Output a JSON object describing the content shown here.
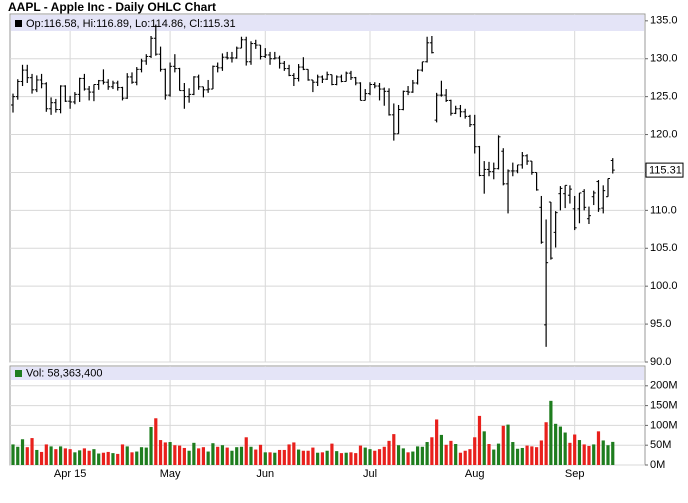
{
  "chart_data": [
    {
      "type": "ohlc",
      "title": "AAPL - Apple Inc - Daily OHLC Chart",
      "legend_text": "Op:116.58, Hi:116.89, Lo:114.86, Cl:115.31",
      "color": "#000000",
      "grid": true,
      "ylim": [
        90,
        135.9
      ],
      "yticks": [
        {
          "value": 90,
          "label": "90.0"
        },
        {
          "value": 95,
          "label": "95.0"
        },
        {
          "value": 100,
          "label": "100.0"
        },
        {
          "value": 105,
          "label": "105.0"
        },
        {
          "value": 110,
          "label": "110.0"
        },
        {
          "value": 115,
          "label": "115.0"
        },
        {
          "value": 120,
          "label": "120.0"
        },
        {
          "value": 125,
          "label": "125.0"
        },
        {
          "value": 130,
          "label": "130.0"
        },
        {
          "value": 135,
          "label": "135.0"
        }
      ],
      "values": [
        [
          123.9,
          125.4,
          122.9,
          125.0
        ],
        [
          125.0,
          127.3,
          124.6,
          127.0
        ],
        [
          127.0,
          129.2,
          126.4,
          128.5
        ],
        [
          128.5,
          129.2,
          126.8,
          127.5
        ],
        [
          127.5,
          128.0,
          125.4,
          125.9
        ],
        [
          125.9,
          127.8,
          125.6,
          127.2
        ],
        [
          127.2,
          128.0,
          126.1,
          126.7
        ],
        [
          126.7,
          126.9,
          123.0,
          123.4
        ],
        [
          123.4,
          124.9,
          122.6,
          124.2
        ],
        [
          124.2,
          124.7,
          122.9,
          123.3
        ],
        [
          123.3,
          126.5,
          122.8,
          126.4
        ],
        [
          126.4,
          126.5,
          124.3,
          124.4
        ],
        [
          124.4,
          125.1,
          123.4,
          124.3
        ],
        [
          124.3,
          125.6,
          124.0,
          125.3
        ],
        [
          125.3,
          127.5,
          124.3,
          127.4
        ],
        [
          127.4,
          128.0,
          125.8,
          126.0
        ],
        [
          126.0,
          126.4,
          124.5,
          125.6
        ],
        [
          125.6,
          126.6,
          124.4,
          126.6
        ],
        [
          126.6,
          127.2,
          125.9,
          127.1
        ],
        [
          127.1,
          128.6,
          126.6,
          126.9
        ],
        [
          126.9,
          127.3,
          125.9,
          126.3
        ],
        [
          126.3,
          127.1,
          126.0,
          126.8
        ],
        [
          126.8,
          127.1,
          125.8,
          126.2
        ],
        [
          126.2,
          126.3,
          124.5,
          124.8
        ],
        [
          124.8,
          128.1,
          124.7,
          127.6
        ],
        [
          127.6,
          128.2,
          126.7,
          126.9
        ],
        [
          126.9,
          128.9,
          126.5,
          128.6
        ],
        [
          128.6,
          130.0,
          128.2,
          129.7
        ],
        [
          129.7,
          130.6,
          129.2,
          130.3
        ],
        [
          130.3,
          133.0,
          130.1,
          132.7
        ],
        [
          132.7,
          134.5,
          130.4,
          130.6
        ],
        [
          130.6,
          131.6,
          128.3,
          128.6
        ],
        [
          128.6,
          128.7,
          124.6,
          125.2
        ],
        [
          125.2,
          129.5,
          125.0,
          129.0
        ],
        [
          129.0,
          130.6,
          128.2,
          128.7
        ],
        [
          128.7,
          128.8,
          125.8,
          125.8
        ],
        [
          125.8,
          126.8,
          123.4,
          125.0
        ],
        [
          125.0,
          126.1,
          124.2,
          125.3
        ],
        [
          125.3,
          127.7,
          125.2,
          127.6
        ],
        [
          127.6,
          127.9,
          125.9,
          126.3
        ],
        [
          126.3,
          126.3,
          124.9,
          125.9
        ],
        [
          125.9,
          127.2,
          125.5,
          126.0
        ],
        [
          126.0,
          129.1,
          126.0,
          129.0
        ],
        [
          129.0,
          129.5,
          128.2,
          128.8
        ],
        [
          128.8,
          130.7,
          128.4,
          130.2
        ],
        [
          130.2,
          130.9,
          129.9,
          130.1
        ],
        [
          130.1,
          130.9,
          129.5,
          130.1
        ],
        [
          130.1,
          131.6,
          130.0,
          131.4
        ],
        [
          131.4,
          132.9,
          131.4,
          132.5
        ],
        [
          132.5,
          132.9,
          129.1,
          129.6
        ],
        [
          129.6,
          132.3,
          129.2,
          132.0
        ],
        [
          132.0,
          132.5,
          131.3,
          131.8
        ],
        [
          131.8,
          131.8,
          129.9,
          130.3
        ],
        [
          130.3,
          131.4,
          130.1,
          130.5
        ],
        [
          130.5,
          130.9,
          129.2,
          130.0
        ],
        [
          130.0,
          130.9,
          129.9,
          130.1
        ],
        [
          130.1,
          130.4,
          128.7,
          129.4
        ],
        [
          129.4,
          129.7,
          128.4,
          128.7
        ],
        [
          128.7,
          129.2,
          127.7,
          127.8
        ],
        [
          127.8,
          128.1,
          126.4,
          127.4
        ],
        [
          127.4,
          129.3,
          127.0,
          128.9
        ],
        [
          128.9,
          130.2,
          128.5,
          128.6
        ],
        [
          128.6,
          128.6,
          127.1,
          127.2
        ],
        [
          127.2,
          127.2,
          125.6,
          126.9
        ],
        [
          126.9,
          127.9,
          126.4,
          127.6
        ],
        [
          127.6,
          127.8,
          126.8,
          127.3
        ],
        [
          127.3,
          128.3,
          127.2,
          127.9
        ],
        [
          127.9,
          127.9,
          126.5,
          126.6
        ],
        [
          126.6,
          127.8,
          126.5,
          127.6
        ],
        [
          127.6,
          127.9,
          126.9,
          127.0
        ],
        [
          127.0,
          128.3,
          127.0,
          128.1
        ],
        [
          128.1,
          128.4,
          127.2,
          127.5
        ],
        [
          127.5,
          127.6,
          126.5,
          126.8
        ],
        [
          126.8,
          126.9,
          124.5,
          124.5
        ],
        [
          124.5,
          126.0,
          124.5,
          125.4
        ],
        [
          125.4,
          126.9,
          125.2,
          126.6
        ],
        [
          126.6,
          126.9,
          126.1,
          126.4
        ],
        [
          126.4,
          126.8,
          124.5,
          126.0
        ],
        [
          126.0,
          126.2,
          123.8,
          125.7
        ],
        [
          125.7,
          126.1,
          122.5,
          122.6
        ],
        [
          122.6,
          124.1,
          119.2,
          120.1
        ],
        [
          120.1,
          123.9,
          120.1,
          123.3
        ],
        [
          123.3,
          125.8,
          123.2,
          125.7
        ],
        [
          125.7,
          126.4,
          125.2,
          125.6
        ],
        [
          125.6,
          127.2,
          125.5,
          126.8
        ],
        [
          126.8,
          128.6,
          126.6,
          128.5
        ],
        [
          128.5,
          129.6,
          128.3,
          129.6
        ],
        [
          129.6,
          132.9,
          129.5,
          132.1
        ],
        [
          132.1,
          133.0,
          130.7,
          130.8
        ],
        [
          121.9,
          125.5,
          121.6,
          125.2
        ],
        [
          125.2,
          127.1,
          125.0,
          125.2
        ],
        [
          125.2,
          126.0,
          124.3,
          124.5
        ],
        [
          124.5,
          124.6,
          122.5,
          122.8
        ],
        [
          122.8,
          123.8,
          122.7,
          123.4
        ],
        [
          123.4,
          123.9,
          122.3,
          123.0
        ],
        [
          123.0,
          123.4,
          122.1,
          122.4
        ],
        [
          122.4,
          122.6,
          121.0,
          121.3
        ],
        [
          121.3,
          122.6,
          117.5,
          118.4
        ],
        [
          118.4,
          118.5,
          114.5,
          114.6
        ],
        [
          114.6,
          116.5,
          112.2,
          115.4
        ],
        [
          115.4,
          116.4,
          114.5,
          115.1
        ],
        [
          115.1,
          116.3,
          114.1,
          115.5
        ],
        [
          115.5,
          119.9,
          115.4,
          119.7
        ],
        [
          117.8,
          118.2,
          113.3,
          113.5
        ],
        [
          113.5,
          115.4,
          109.6,
          115.2
        ],
        [
          115.2,
          116.3,
          114.5,
          115.2
        ],
        [
          115.2,
          116.0,
          114.9,
          116.0
        ],
        [
          116.0,
          117.7,
          115.5,
          117.2
        ],
        [
          117.2,
          117.4,
          116.0,
          116.5
        ],
        [
          116.5,
          116.5,
          114.7,
          115.0
        ],
        [
          115.0,
          115.0,
          112.6,
          112.7
        ],
        [
          110.4,
          111.9,
          105.6,
          105.8
        ],
        [
          94.9,
          108.8,
          92.0,
          103.1
        ],
        [
          111.1,
          111.1,
          103.5,
          103.7
        ],
        [
          107.1,
          109.9,
          105.1,
          109.7
        ],
        [
          112.2,
          113.2,
          110.0,
          112.9
        ],
        [
          112.2,
          113.3,
          110.3,
          113.3
        ],
        [
          112.0,
          113.3,
          110.9,
          112.8
        ],
        [
          110.2,
          111.9,
          107.4,
          107.7
        ],
        [
          110.2,
          112.3,
          108.3,
          112.3
        ],
        [
          112.5,
          112.8,
          110.0,
          110.4
        ],
        [
          108.9,
          110.5,
          108.2,
          109.3
        ],
        [
          111.8,
          112.6,
          110.7,
          112.3
        ],
        [
          113.8,
          114.0,
          109.8,
          110.2
        ],
        [
          110.3,
          113.3,
          109.6,
          112.6
        ],
        [
          111.8,
          114.2,
          111.8,
          114.2
        ],
        [
          116.58,
          116.89,
          114.86,
          115.31
        ]
      ]
    },
    {
      "type": "bar",
      "legend_text": "Vol: 58,363,400",
      "up_color": "#1e7d1e",
      "down_color": "#e8201c",
      "grid": true,
      "ylim": [
        0,
        250
      ],
      "yticks": [
        {
          "value": 0,
          "label": "0M"
        },
        {
          "value": 50,
          "label": "50M"
        },
        {
          "value": 100,
          "label": "100M"
        },
        {
          "value": 150,
          "label": "150M"
        },
        {
          "value": 200,
          "label": "200M"
        }
      ],
      "categories": [
        null,
        null,
        null,
        null,
        null,
        null,
        null,
        null,
        null,
        null,
        null,
        null,
        "Apr 15",
        null,
        null,
        null,
        null,
        null,
        null,
        null,
        null,
        null,
        null,
        null,
        null,
        null,
        null,
        null,
        null,
        null,
        null,
        null,
        null,
        "May",
        null,
        null,
        null,
        null,
        null,
        null,
        null,
        null,
        null,
        null,
        null,
        null,
        null,
        null,
        null,
        null,
        null,
        null,
        null,
        "Jun",
        null,
        null,
        null,
        null,
        null,
        null,
        null,
        null,
        null,
        null,
        null,
        null,
        null,
        null,
        null,
        null,
        null,
        null,
        null,
        null,
        null,
        "Jul",
        null,
        null,
        null,
        null,
        null,
        null,
        null,
        null,
        null,
        null,
        null,
        null,
        null,
        null,
        null,
        null,
        null,
        null,
        null,
        null,
        null,
        "Aug",
        null,
        null,
        null,
        null,
        null,
        null,
        null,
        null,
        null,
        null,
        null,
        null,
        null,
        null,
        null,
        null,
        null,
        null,
        null,
        null,
        "Sep",
        null,
        null,
        null,
        null,
        null,
        null,
        null,
        null
      ],
      "values": [
        52,
        46,
        65,
        45,
        68,
        38,
        33,
        52,
        47,
        40,
        47,
        42,
        40,
        32,
        37,
        42,
        36,
        40,
        29,
        31,
        33,
        30,
        28,
        52,
        47,
        32,
        34,
        45,
        44,
        96,
        118,
        63,
        57,
        58,
        50,
        49,
        43,
        36,
        56,
        42,
        45,
        34,
        55,
        46,
        50,
        44,
        36,
        45,
        46,
        70,
        46,
        39,
        51,
        32,
        32,
        31,
        38,
        38,
        52,
        57,
        39,
        36,
        36,
        44,
        31,
        32,
        36,
        54,
        35,
        30,
        31,
        32,
        30,
        49,
        44,
        40,
        36,
        40,
        46,
        61,
        78,
        50,
        42,
        32,
        34,
        47,
        46,
        58,
        70,
        115,
        76,
        51,
        61,
        53,
        31,
        36,
        40,
        70,
        124,
        85,
        53,
        39,
        54,
        99,
        102,
        58,
        41,
        43,
        49,
        47,
        45,
        62,
        108,
        162,
        104,
        97,
        82,
        56,
        77,
        63,
        52,
        48,
        52,
        85,
        62,
        50,
        58.3634
      ]
    }
  ]
}
